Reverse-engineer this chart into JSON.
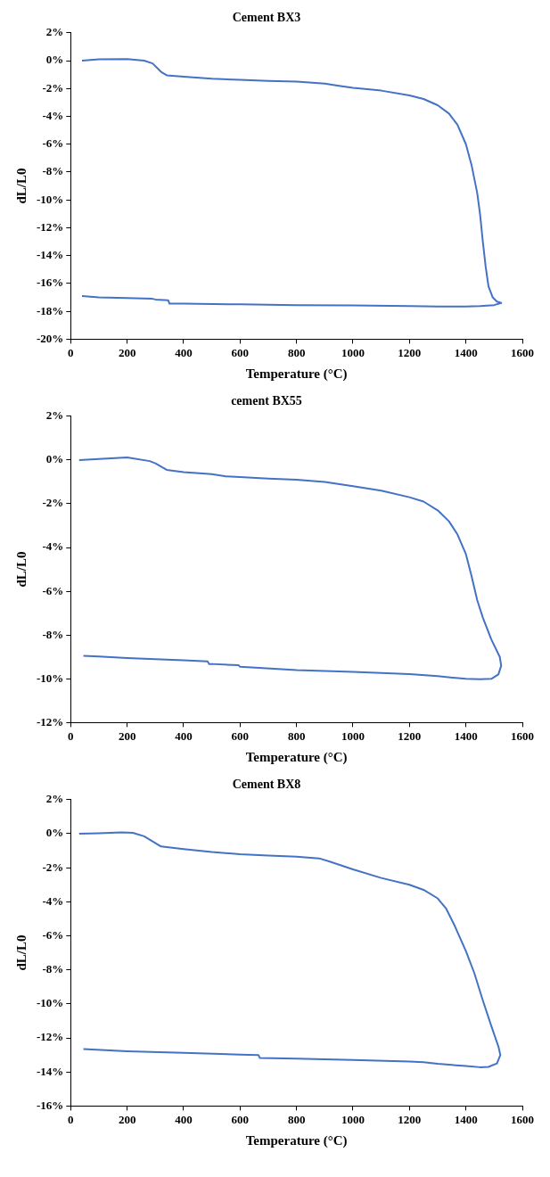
{
  "chart_data": [
    {
      "type": "line",
      "title": "Cement BX3",
      "xlabel": "Temperature (°C)",
      "ylabel": "dL/L0",
      "marker": "none",
      "grid": false,
      "xlim": [
        0,
        1600
      ],
      "xticks": [
        0,
        200,
        400,
        600,
        800,
        1000,
        1200,
        1400,
        1600
      ],
      "ylim": [
        -20,
        2
      ],
      "yticks": [
        {
          "value": 2,
          "label": "2%"
        },
        {
          "value": 0,
          "label": "0%"
        },
        {
          "value": -2,
          "label": "-2%"
        },
        {
          "value": -4,
          "label": "-4%"
        },
        {
          "value": -6,
          "label": "-6%"
        },
        {
          "value": -8,
          "label": "-8%"
        },
        {
          "value": -10,
          "label": "-10%"
        },
        {
          "value": -12,
          "label": "-12%"
        },
        {
          "value": -14,
          "label": "-14%"
        },
        {
          "value": -16,
          "label": "-16%"
        },
        {
          "value": -18,
          "label": "-18%"
        },
        {
          "value": -20,
          "label": "-20%"
        }
      ],
      "series": [
        {
          "color": "#4472c4",
          "x": [
            40,
            100,
            200,
            260,
            290,
            320,
            340,
            400,
            500,
            600,
            700,
            800,
            900,
            950,
            1000,
            1100,
            1200,
            1250,
            1300,
            1340,
            1370,
            1400,
            1420,
            1440,
            1450,
            1460,
            1470,
            1480,
            1495,
            1510,
            1525,
            1500,
            1450,
            1400,
            1300,
            1200,
            1000,
            800,
            600,
            400,
            350,
            345,
            300,
            290,
            200,
            100,
            40
          ],
          "values": [
            0,
            0.1,
            0.12,
            0,
            -0.2,
            -0.8,
            -1.05,
            -1.15,
            -1.3,
            -1.38,
            -1.45,
            -1.5,
            -1.65,
            -1.8,
            -1.95,
            -2.15,
            -2.5,
            -2.75,
            -3.2,
            -3.8,
            -4.6,
            -6,
            -7.5,
            -9.5,
            -11,
            -13,
            -14.8,
            -16.2,
            -17,
            -17.3,
            -17.4,
            -17.55,
            -17.62,
            -17.65,
            -17.65,
            -17.62,
            -17.58,
            -17.55,
            -17.5,
            -17.45,
            -17.45,
            -17.2,
            -17.15,
            -17.1,
            -17.05,
            -17,
            -16.9
          ]
        }
      ]
    },
    {
      "type": "line",
      "title": "cement BX55",
      "xlabel": "Temperature (°C)",
      "ylabel": "dL/L0",
      "marker": "none",
      "grid": false,
      "xlim": [
        0,
        1600
      ],
      "xticks": [
        0,
        200,
        400,
        600,
        800,
        1000,
        1200,
        1400,
        1600
      ],
      "ylim": [
        -12,
        2
      ],
      "yticks": [
        {
          "value": 2,
          "label": "2%"
        },
        {
          "value": 0,
          "label": "0%"
        },
        {
          "value": -2,
          "label": "-2%"
        },
        {
          "value": -4,
          "label": "-4%"
        },
        {
          "value": -6,
          "label": "-6%"
        },
        {
          "value": -8,
          "label": "-8%"
        },
        {
          "value": -10,
          "label": "-10%"
        },
        {
          "value": -12,
          "label": "-12%"
        }
      ],
      "series": [
        {
          "color": "#4472c4",
          "x": [
            30,
            100,
            200,
            280,
            300,
            340,
            400,
            500,
            550,
            600,
            700,
            800,
            900,
            1000,
            1100,
            1200,
            1250,
            1300,
            1340,
            1370,
            1400,
            1420,
            1440,
            1460,
            1490,
            1520,
            1525,
            1515,
            1490,
            1450,
            1400,
            1300,
            1200,
            1000,
            800,
            600,
            595,
            500,
            490,
            485,
            400,
            200,
            100,
            45
          ],
          "values": [
            0,
            0.05,
            0.12,
            -0.05,
            -0.15,
            -0.45,
            -0.55,
            -0.65,
            -0.75,
            -0.78,
            -0.85,
            -0.9,
            -1,
            -1.2,
            -1.4,
            -1.7,
            -1.9,
            -2.3,
            -2.8,
            -3.4,
            -4.3,
            -5.3,
            -6.4,
            -7.2,
            -8.2,
            -9,
            -9.4,
            -9.8,
            -10,
            -10.02,
            -10,
            -9.88,
            -9.78,
            -9.68,
            -9.6,
            -9.45,
            -9.38,
            -9.32,
            -9.32,
            -9.2,
            -9.15,
            -9.05,
            -8.98,
            -8.95
          ]
        }
      ]
    },
    {
      "type": "line",
      "title": "Cement BX8",
      "xlabel": "Temperature (°C)",
      "ylabel": "dL/L0",
      "marker": "none",
      "grid": false,
      "xlim": [
        0,
        1600
      ],
      "xticks": [
        0,
        200,
        400,
        600,
        800,
        1000,
        1200,
        1400,
        1600
      ],
      "ylim": [
        -16,
        2
      ],
      "yticks": [
        {
          "value": 2,
          "label": "2%"
        },
        {
          "value": 0,
          "label": "0%"
        },
        {
          "value": -2,
          "label": "-2%"
        },
        {
          "value": -4,
          "label": "-4%"
        },
        {
          "value": -6,
          "label": "-6%"
        },
        {
          "value": -8,
          "label": "-8%"
        },
        {
          "value": -10,
          "label": "-10%"
        },
        {
          "value": -12,
          "label": "-12%"
        },
        {
          "value": -14,
          "label": "-14%"
        },
        {
          "value": -16,
          "label": "-16%"
        }
      ],
      "series": [
        {
          "color": "#4472c4",
          "x": [
            30,
            100,
            180,
            220,
            260,
            290,
            320,
            400,
            500,
            600,
            700,
            800,
            880,
            920,
            1000,
            1100,
            1200,
            1250,
            1300,
            1330,
            1360,
            1400,
            1430,
            1460,
            1490,
            1515,
            1522,
            1510,
            1480,
            1450,
            1400,
            1300,
            1250,
            1200,
            1000,
            800,
            670,
            665,
            600,
            400,
            200,
            45
          ],
          "values": [
            0,
            0.03,
            0.08,
            0.05,
            -0.15,
            -0.45,
            -0.75,
            -0.9,
            -1.08,
            -1.2,
            -1.28,
            -1.35,
            -1.45,
            -1.65,
            -2.1,
            -2.6,
            -3,
            -3.3,
            -3.8,
            -4.4,
            -5.4,
            -6.9,
            -8.2,
            -9.8,
            -11.3,
            -12.5,
            -13,
            -13.5,
            -13.7,
            -13.72,
            -13.65,
            -13.52,
            -13.42,
            -13.38,
            -13.3,
            -13.22,
            -13.18,
            -13,
            -12.98,
            -12.88,
            -12.78,
            -12.65
          ]
        }
      ]
    }
  ]
}
